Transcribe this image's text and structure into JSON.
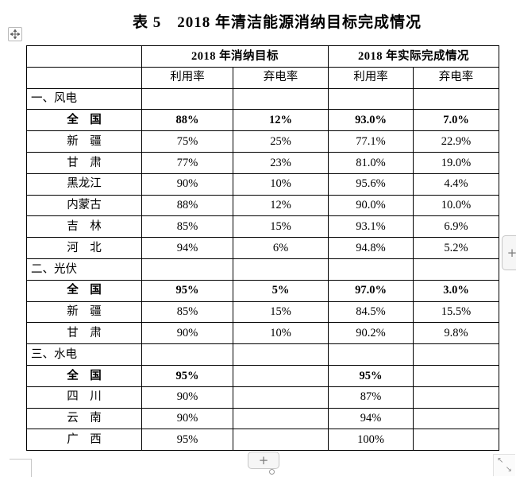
{
  "page": {
    "title": "表 5　2018 年清洁能源消纳目标完成情况"
  },
  "table": {
    "header": {
      "col_group_target": "2018 年消纳目标",
      "col_group_actual": "2018 年实际完成情况",
      "subheaders": [
        "利用率",
        "弃电率",
        "利用率",
        "弃电率"
      ]
    },
    "rows": [
      {
        "type": "section",
        "label": "一、风电",
        "values": [
          "",
          "",
          "",
          ""
        ]
      },
      {
        "type": "total",
        "label": "全　国",
        "values": [
          "88%",
          "12%",
          "93.0%",
          "7.0%"
        ]
      },
      {
        "type": "region",
        "label": "新　疆",
        "values": [
          "75%",
          "25%",
          "77.1%",
          "22.9%"
        ]
      },
      {
        "type": "region",
        "label": "甘　肃",
        "values": [
          "77%",
          "23%",
          "81.0%",
          "19.0%"
        ]
      },
      {
        "type": "region",
        "label": "黑龙江",
        "values": [
          "90%",
          "10%",
          "95.6%",
          "4.4%"
        ]
      },
      {
        "type": "region",
        "label": "内蒙古",
        "values": [
          "88%",
          "12%",
          "90.0%",
          "10.0%"
        ]
      },
      {
        "type": "region",
        "label": "吉　林",
        "values": [
          "85%",
          "15%",
          "93.1%",
          "6.9%"
        ]
      },
      {
        "type": "region",
        "label": "河　北",
        "values": [
          "94%",
          "6%",
          "94.8%",
          "5.2%"
        ]
      },
      {
        "type": "section",
        "label": "二、光伏",
        "values": [
          "",
          "",
          "",
          ""
        ]
      },
      {
        "type": "total",
        "label": "全　国",
        "values": [
          "95%",
          "5%",
          "97.0%",
          "3.0%"
        ]
      },
      {
        "type": "region",
        "label": "新　疆",
        "values": [
          "85%",
          "15%",
          "84.5%",
          "15.5%"
        ]
      },
      {
        "type": "region",
        "label": "甘　肃",
        "values": [
          "90%",
          "10%",
          "90.2%",
          "9.8%"
        ]
      },
      {
        "type": "section",
        "label": "三、水电",
        "values": [
          "",
          "",
          "",
          ""
        ]
      },
      {
        "type": "total",
        "label": "全　国",
        "values": [
          "95%",
          "",
          "95%",
          ""
        ]
      },
      {
        "type": "region",
        "label": "四　川",
        "values": [
          "90%",
          "",
          "87%",
          ""
        ]
      },
      {
        "type": "region",
        "label": "云　南",
        "values": [
          "90%",
          "",
          "94%",
          ""
        ]
      },
      {
        "type": "region",
        "label": "广　西",
        "values": [
          "95%",
          "",
          "100%",
          ""
        ]
      }
    ]
  },
  "chrome": {
    "add_row_label": "+",
    "add_col_label": "+",
    "resize_nw": "↖",
    "resize_se": "↘"
  },
  "colors": {
    "table_border": "#000000",
    "button_bg": "#f6f6f6",
    "button_border": "#c6c6c6",
    "handle_icon": "#5f5f5f"
  }
}
